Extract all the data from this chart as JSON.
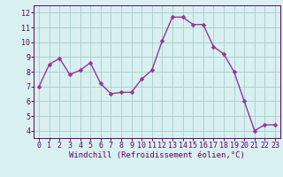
{
  "x": [
    0,
    1,
    2,
    3,
    4,
    5,
    6,
    7,
    8,
    9,
    10,
    11,
    12,
    13,
    14,
    15,
    16,
    17,
    18,
    19,
    20,
    21,
    22,
    23
  ],
  "y": [
    7.0,
    8.5,
    8.9,
    7.8,
    8.1,
    8.6,
    7.2,
    6.5,
    6.6,
    6.6,
    7.5,
    8.1,
    10.1,
    11.7,
    11.7,
    11.2,
    11.2,
    9.7,
    9.2,
    8.0,
    6.0,
    4.0,
    4.4,
    4.4
  ],
  "line_color": "#993399",
  "marker": "D",
  "marker_size": 2.5,
  "line_width": 1.0,
  "bg_color": "#d8f0f0",
  "grid_color": "#aacccc",
  "xlabel": "Windchill (Refroidissement éolien,°C)",
  "xlabel_fontsize": 6.5,
  "xlabel_color": "#660066",
  "tick_color": "#660066",
  "tick_fontsize": 6.0,
  "ylim": [
    3.5,
    12.5
  ],
  "xlim": [
    -0.5,
    23.5
  ],
  "yticks": [
    4,
    5,
    6,
    7,
    8,
    9,
    10,
    11,
    12
  ],
  "xticks": [
    0,
    1,
    2,
    3,
    4,
    5,
    6,
    7,
    8,
    9,
    10,
    11,
    12,
    13,
    14,
    15,
    16,
    17,
    18,
    19,
    20,
    21,
    22,
    23
  ]
}
